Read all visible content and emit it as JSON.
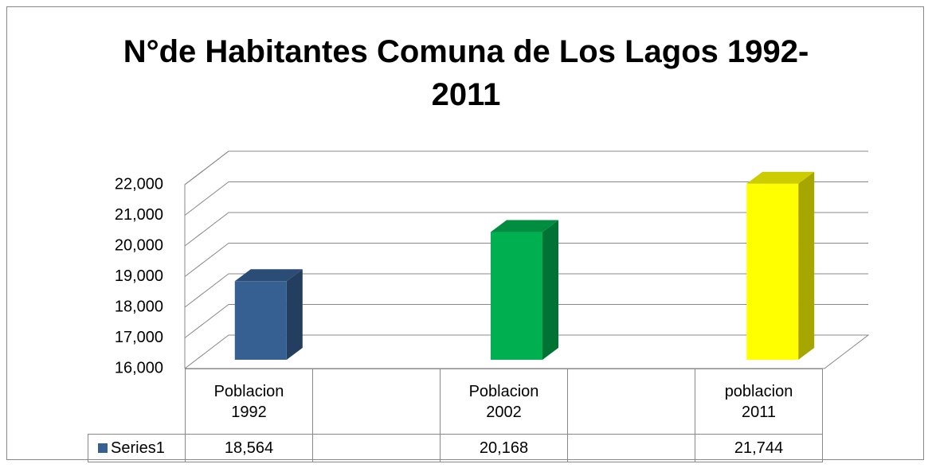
{
  "chart_data": {
    "type": "bar3d",
    "title": "N°de Habitantes Comuna de Los Lagos 1992-2011",
    "categories": [
      "Poblacion 1992",
      null,
      "Poblacion 2002",
      null,
      "poblacion 2011"
    ],
    "series": [
      {
        "name": "Series1",
        "color": "#366092",
        "values": [
          18564,
          null,
          20168,
          null,
          21744
        ],
        "value_labels": [
          "18,564",
          null,
          "20,168",
          null,
          "21,744"
        ],
        "point_colors": [
          "#366092",
          null,
          "#00b050",
          null,
          "#ffff00"
        ]
      }
    ],
    "ylim": [
      16000,
      22000
    ],
    "yticks": [
      {
        "value": 16000,
        "label": "16,000"
      },
      {
        "value": 17000,
        "label": "17,000"
      },
      {
        "value": 18000,
        "label": "18,000"
      },
      {
        "value": 19000,
        "label": "19,000"
      },
      {
        "value": 20000,
        "label": "20,000"
      },
      {
        "value": 21000,
        "label": "21,000"
      },
      {
        "value": 22000,
        "label": "22,000"
      }
    ],
    "grid": true,
    "data_table": true
  }
}
